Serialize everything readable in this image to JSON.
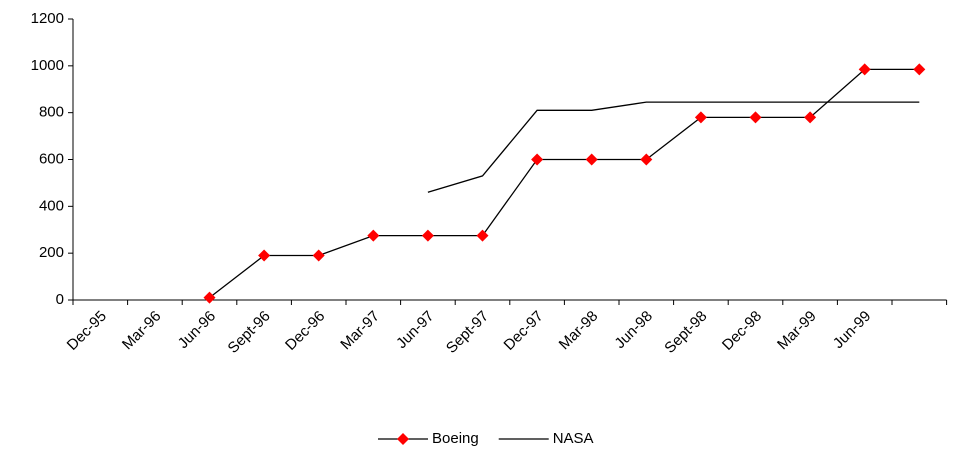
{
  "chart_data": {
    "type": "line",
    "categories": [
      "Dec-95",
      "Mar-96",
      "Jun-96",
      "Sept-96",
      "Dec-96",
      "Mar-97",
      "Jun-97",
      "Sept-97",
      "Dec-97",
      "Mar-98",
      "Jun-98",
      "Sept-98",
      "Dec-98",
      "Mar-99",
      "Jun-99",
      null
    ],
    "series": [
      {
        "name": "Boeing",
        "color": "#ff0000",
        "line_color": "#000000",
        "marker": "diamond",
        "values": [
          null,
          null,
          10,
          190,
          190,
          275,
          275,
          275,
          600,
          600,
          600,
          780,
          780,
          780,
          985,
          985
        ]
      },
      {
        "name": "NASA",
        "color": "#000000",
        "values": [
          null,
          null,
          null,
          null,
          null,
          null,
          460,
          530,
          810,
          810,
          845,
          845,
          845,
          845,
          845,
          845
        ]
      }
    ],
    "ylim": [
      0,
      1200
    ],
    "yticks": [
      0,
      200,
      400,
      600,
      800,
      1000,
      1200
    ],
    "legend": "bottom"
  }
}
